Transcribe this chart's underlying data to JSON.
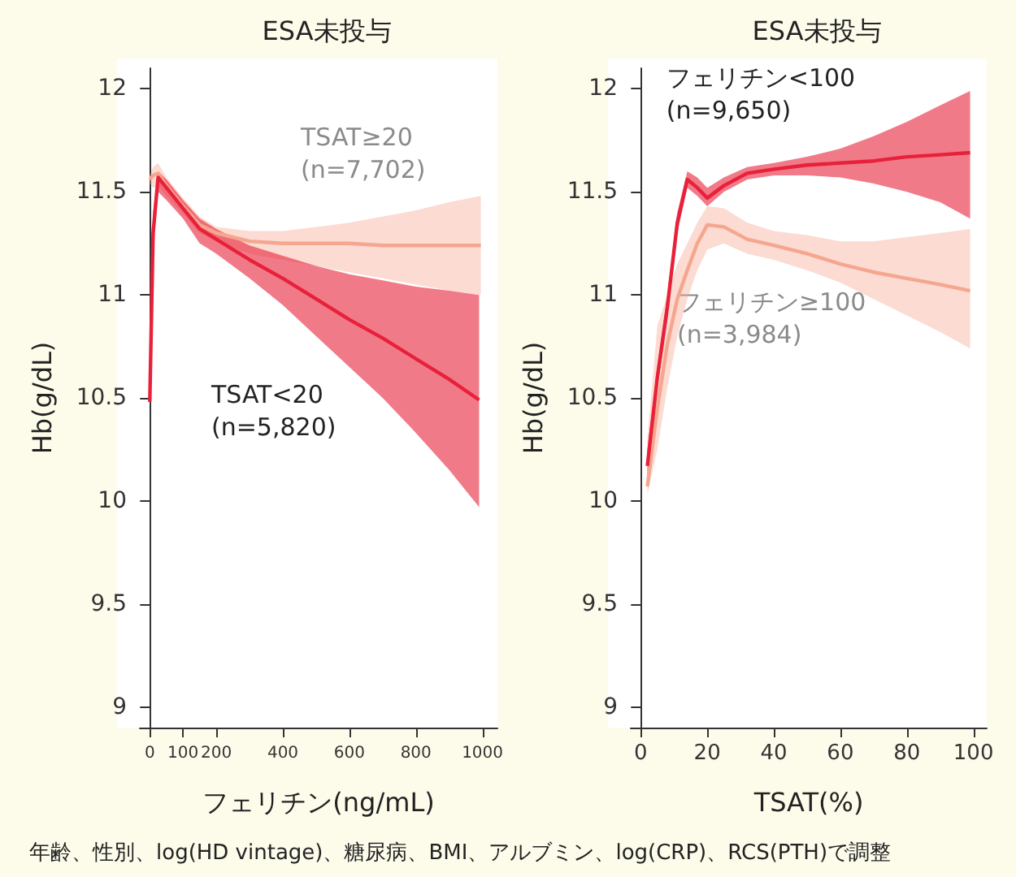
{
  "chart_data": [
    {
      "type": "line",
      "title": "ESA未投与",
      "xlabel": "フェリチン(ng/mL)",
      "ylabel": "Hb(g/dL)",
      "xlim": [
        -30,
        1045
      ],
      "xticks": [
        0,
        100,
        200,
        400,
        600,
        800,
        1000
      ],
      "ylim": [
        8.9,
        12.1
      ],
      "yticks": [
        9,
        9.5,
        10,
        10.5,
        11,
        11.5,
        12
      ],
      "grid": false,
      "legend": false,
      "marker": "none",
      "line_style": "solid",
      "annotations": [
        "年齢、性別、log(HD vintage)、糖尿病、BMI、アルブミン、log(CRP)、RCS(PTH)で調整"
      ],
      "series": [
        {
          "name": "TSAT≥20\n(n=7,702)",
          "color": "#f5a68e",
          "x": [
            0,
            10,
            25,
            50,
            100,
            150,
            200,
            300,
            400,
            500,
            600,
            700,
            800,
            900,
            995
          ],
          "values": [
            11.56,
            11.58,
            11.59,
            11.53,
            11.43,
            11.34,
            11.3,
            11.26,
            11.25,
            11.25,
            11.25,
            11.24,
            11.24,
            11.24,
            11.24
          ],
          "lower": [
            11.54,
            11.52,
            11.53,
            11.48,
            11.39,
            11.3,
            11.26,
            11.2,
            11.17,
            11.14,
            11.11,
            11.08,
            11.05,
            11.02,
            11.0
          ],
          "upper": [
            11.58,
            11.62,
            11.64,
            11.57,
            11.47,
            11.38,
            11.33,
            11.31,
            11.31,
            11.33,
            11.35,
            11.38,
            11.41,
            11.45,
            11.48
          ]
        },
        {
          "name": "TSAT<20\n(n=5,820)",
          "color": "#e8213a",
          "x": [
            0,
            10,
            25,
            50,
            100,
            150,
            200,
            300,
            400,
            500,
            600,
            700,
            800,
            900,
            990
          ],
          "values": [
            10.48,
            11.3,
            11.57,
            11.52,
            11.42,
            11.32,
            11.27,
            11.17,
            11.08,
            10.98,
            10.88,
            10.79,
            10.69,
            10.59,
            10.49
          ],
          "lower": [
            10.45,
            11.2,
            11.5,
            11.46,
            11.37,
            11.25,
            11.2,
            11.08,
            10.95,
            10.8,
            10.65,
            10.5,
            10.33,
            10.15,
            9.97
          ],
          "upper": [
            10.5,
            11.4,
            11.6,
            11.56,
            11.46,
            11.37,
            11.32,
            11.24,
            11.19,
            11.14,
            11.1,
            11.07,
            11.04,
            11.02,
            11.0
          ]
        }
      ]
    },
    {
      "type": "line",
      "title": "ESA未投与",
      "xlabel": "TSAT(%)",
      "ylabel": "Hb(g/dL)",
      "xlim": [
        -3,
        104
      ],
      "xticks": [
        0,
        20,
        40,
        60,
        80,
        100
      ],
      "ylim": [
        8.9,
        12.1
      ],
      "yticks": [
        9,
        9.5,
        10,
        10.5,
        11,
        11.5,
        12
      ],
      "grid": false,
      "legend": false,
      "marker": "none",
      "line_style": "solid",
      "series": [
        {
          "name": "フェリチン≥100\n(n=3,984)",
          "color": "#f5a68e",
          "x": [
            2,
            5,
            8,
            11,
            14,
            17,
            20,
            25,
            32,
            40,
            50,
            60,
            70,
            80,
            90,
            99
          ],
          "values": [
            10.07,
            10.45,
            10.76,
            10.98,
            11.12,
            11.25,
            11.34,
            11.33,
            11.27,
            11.24,
            11.2,
            11.15,
            11.11,
            11.08,
            11.05,
            11.02
          ],
          "lower": [
            10.03,
            10.25,
            10.55,
            10.8,
            10.98,
            11.12,
            11.22,
            11.25,
            11.2,
            11.17,
            11.12,
            11.06,
            10.98,
            10.9,
            10.82,
            10.74
          ],
          "upper": [
            10.3,
            10.85,
            11.0,
            11.15,
            11.25,
            11.35,
            11.43,
            11.42,
            11.35,
            11.31,
            11.29,
            11.26,
            11.26,
            11.28,
            11.3,
            11.32
          ]
        },
        {
          "name": "フェリチン<100\n(n=9,650)",
          "color": "#e8213a",
          "x": [
            2,
            5,
            8,
            11,
            14,
            17,
            20,
            25,
            32,
            40,
            50,
            60,
            70,
            80,
            90,
            99
          ],
          "values": [
            10.17,
            10.6,
            10.94,
            11.35,
            11.56,
            11.52,
            11.47,
            11.53,
            11.59,
            11.61,
            11.63,
            11.64,
            11.65,
            11.67,
            11.68,
            11.69
          ],
          "lower": [
            10.1,
            10.55,
            10.88,
            11.3,
            11.52,
            11.48,
            11.43,
            11.5,
            11.56,
            11.58,
            11.58,
            11.57,
            11.54,
            11.5,
            11.45,
            11.37
          ],
          "upper": [
            10.25,
            10.65,
            11.0,
            11.4,
            11.6,
            11.57,
            11.52,
            11.57,
            11.62,
            11.64,
            11.67,
            11.71,
            11.77,
            11.84,
            11.92,
            11.99
          ]
        }
      ]
    }
  ]
}
